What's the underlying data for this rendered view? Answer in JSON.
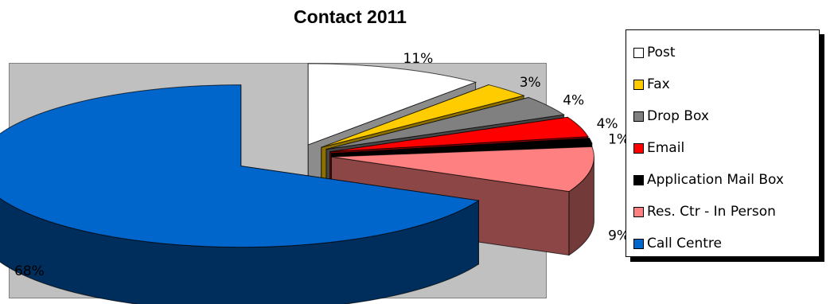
{
  "chart_data": {
    "type": "pie",
    "title": "Contact 2011",
    "exploded": true,
    "three_d": true,
    "legend_position": "right",
    "categories": [
      "Post",
      "Fax",
      "Drop Box",
      "Email",
      "Application Mail Box",
      "Res. Ctr - In Person",
      "Call Centre"
    ],
    "values": [
      11,
      3,
      4,
      4,
      1,
      9,
      68
    ],
    "labels": [
      "11%",
      "3%",
      "4%",
      "4%",
      "1%",
      "9%",
      "68%"
    ],
    "colors": [
      "#ffffff",
      "#ffcc00",
      "#808080",
      "#ff0000",
      "#000000",
      "#ff8080",
      "#0066cc"
    ]
  },
  "legend": {
    "items": [
      {
        "label": "Post",
        "color": "#ffffff"
      },
      {
        "label": "Fax",
        "color": "#ffcc00"
      },
      {
        "label": "Drop Box",
        "color": "#808080"
      },
      {
        "label": "Email",
        "color": "#ff0000"
      },
      {
        "label": "Application Mail Box",
        "color": "#000000"
      },
      {
        "label": "Res. Ctr - In Person",
        "color": "#ff8080"
      },
      {
        "label": "Call Centre",
        "color": "#0066cc"
      }
    ]
  }
}
